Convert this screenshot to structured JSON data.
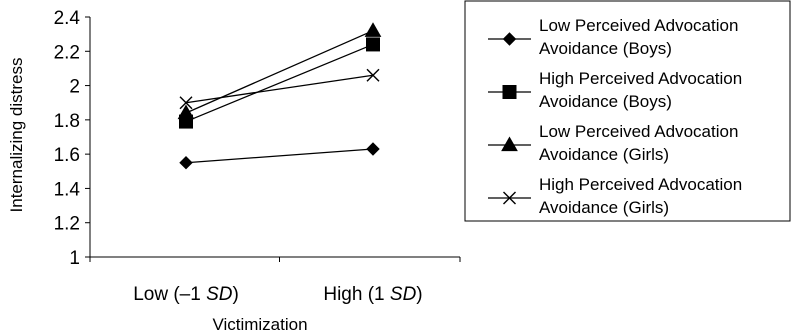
{
  "chart_data": {
    "type": "line",
    "xlabel": "Victimization",
    "ylabel": "Internalizing distress",
    "categories": [
      {
        "prefix": "Low (–1 ",
        "italic": "SD",
        "suffix": ")"
      },
      {
        "prefix": "High (1 ",
        "italic": "SD",
        "suffix": ")"
      }
    ],
    "ylim": [
      1,
      2.4
    ],
    "yticks": [
      "1",
      "1.2",
      "1.4",
      "1.6",
      "1.8",
      "2",
      "2.2",
      "2.4"
    ],
    "grid": false,
    "legend_position": "right",
    "series": [
      {
        "name": "Low Perceived Advocation Avoidance (Boys)",
        "name_lines": [
          "Low Perceived Advocation",
          "Avoidance (Boys)"
        ],
        "marker": "diamond",
        "values": [
          1.55,
          1.63
        ]
      },
      {
        "name": "High Perceived Advocation Avoidance (Boys)",
        "name_lines": [
          "High Perceived Advocation",
          "Avoidance (Boys)"
        ],
        "marker": "square",
        "values": [
          1.79,
          2.24
        ]
      },
      {
        "name": "Low Perceived Advocation Avoidance (Girls)",
        "name_lines": [
          "Low Perceived Advocation",
          "Avoidance (Girls)"
        ],
        "marker": "triangle",
        "values": [
          1.84,
          2.32
        ]
      },
      {
        "name": "High Perceived Advocation Avoidance (Girls)",
        "name_lines": [
          "High Perceived Advocation",
          "Avoidance (Girls)"
        ],
        "marker": "x",
        "values": [
          1.9,
          2.06
        ]
      }
    ],
    "colors": {
      "line": "#000000",
      "background": "#ffffff"
    }
  }
}
